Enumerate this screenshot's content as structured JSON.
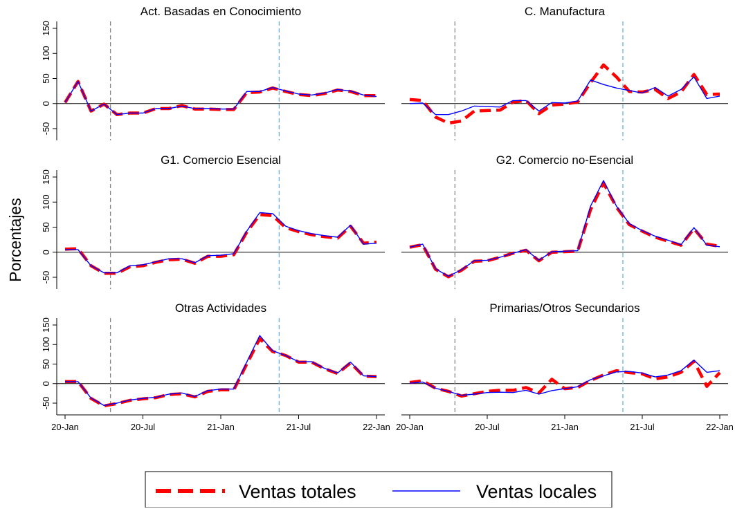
{
  "chart_data": {
    "type": "line",
    "ylabel": "Porcentajes",
    "x_ticks": [
      "20-Jan",
      "20-Jul",
      "21-Jan",
      "21-Jul",
      "22-Jan"
    ],
    "y_ticks": [
      -50,
      0,
      50,
      100,
      150
    ],
    "ylim": [
      -70,
      160
    ],
    "grid": false,
    "legend_position": "bottom",
    "reference_lines": [
      {
        "x": 3.5,
        "color": "#888888",
        "style": "dashed"
      },
      {
        "x": 16.5,
        "color": "#6ab0d8",
        "style": "dashed"
      },
      {
        "y": 0,
        "color": "#000000",
        "style": "solid"
      }
    ],
    "series_styles": [
      {
        "name": "Ventas totales",
        "color": "#ff0000",
        "dash": "dashed"
      },
      {
        "name": "Ventas locales",
        "color": "#0000ff",
        "dash": "solid"
      }
    ],
    "panels": [
      {
        "title": "Act. Basadas en Conocimiento",
        "series": [
          {
            "name": "Ventas totales",
            "values": [
              2,
              44,
              -15,
              -1,
              -22,
              -19,
              -19,
              -10,
              -10,
              -4,
              -11,
              -11,
              -12,
              -12,
              22,
              23,
              31,
              24,
              18,
              16,
              20,
              27,
              24,
              16,
              16
            ]
          },
          {
            "name": "Ventas locales",
            "values": [
              2,
              44,
              -15,
              -1,
              -22,
              -19,
              -19,
              -10,
              -10,
              -5,
              -10,
              -10,
              -11,
              -11,
              24,
              24,
              32,
              25,
              19,
              17,
              21,
              28,
              25,
              17,
              14
            ]
          }
        ]
      },
      {
        "title": "C. Manufactura",
        "series": [
          {
            "name": "Ventas totales",
            "values": [
              8,
              6,
              -27,
              -39,
              -35,
              -15,
              -14,
              -13,
              3,
              6,
              -20,
              -3,
              -1,
              3,
              42,
              77,
              53,
              24,
              23,
              28,
              10,
              23,
              58,
              18,
              19
            ]
          },
          {
            "name": "Ventas locales",
            "values": [
              0,
              1,
              -22,
              -22,
              -15,
              -5,
              -6,
              -7,
              6,
              6,
              -15,
              2,
              1,
              5,
              47,
              38,
              31,
              26,
              21,
              32,
              15,
              28,
              53,
              10,
              15
            ]
          }
        ]
      },
      {
        "title": "G1. Comercio Esencial",
        "series": [
          {
            "name": "Ventas totales",
            "values": [
              6,
              7,
              -27,
              -42,
              -42,
              -29,
              -27,
              -20,
              -15,
              -14,
              -22,
              -8,
              -8,
              -5,
              40,
              75,
              73,
              49,
              41,
              35,
              31,
              28,
              52,
              18,
              20
            ]
          },
          {
            "name": "Ventas locales",
            "values": [
              5,
              5,
              -27,
              -41,
              -41,
              -27,
              -25,
              -19,
              -13,
              -13,
              -21,
              -7,
              -6,
              -3,
              42,
              79,
              77,
              52,
              43,
              37,
              33,
              30,
              54,
              16,
              18
            ]
          }
        ]
      },
      {
        "title": "G2. Comercio no-Esencial",
        "series": [
          {
            "name": "Ventas totales",
            "values": [
              10,
              15,
              -34,
              -49,
              -36,
              -18,
              -17,
              -10,
              -2,
              4,
              -17,
              0,
              1,
              2,
              85,
              138,
              90,
              55,
              42,
              30,
              22,
              14,
              47,
              16,
              12
            ]
          },
          {
            "name": "Ventas locales",
            "values": [
              10,
              16,
              -33,
              -48,
              -35,
              -17,
              -16,
              -10,
              -2,
              5,
              -16,
              1,
              2,
              3,
              92,
              143,
              92,
              57,
              43,
              32,
              24,
              15,
              49,
              14,
              11
            ]
          }
        ]
      },
      {
        "title": "Otras Actividades",
        "series": [
          {
            "name": "Ventas totales",
            "values": [
              5,
              5,
              -38,
              -57,
              -51,
              -43,
              -39,
              -36,
              -28,
              -26,
              -34,
              -20,
              -16,
              -16,
              50,
              115,
              82,
              72,
              55,
              55,
              38,
              26,
              53,
              19,
              18
            ]
          },
          {
            "name": "Ventas locales",
            "values": [
              5,
              5,
              -37,
              -56,
              -50,
              -42,
              -38,
              -35,
              -27,
              -24,
              -33,
              -18,
              -14,
              -14,
              55,
              123,
              84,
              72,
              56,
              56,
              39,
              27,
              55,
              20,
              18
            ]
          }
        ]
      },
      {
        "title": "Primarias/Otros Secundarios",
        "series": [
          {
            "name": "Ventas totales",
            "values": [
              3,
              7,
              -12,
              -20,
              -32,
              -26,
              -20,
              -17,
              -17,
              -10,
              -24,
              11,
              -13,
              -10,
              8,
              22,
              33,
              28,
              25,
              12,
              17,
              29,
              57,
              -7,
              28
            ]
          },
          {
            "name": "Ventas locales",
            "values": [
              1,
              4,
              -12,
              -20,
              -30,
              -27,
              -23,
              -22,
              -23,
              -17,
              -27,
              -18,
              -13,
              -8,
              10,
              20,
              30,
              31,
              27,
              17,
              22,
              33,
              60,
              29,
              33
            ]
          }
        ]
      }
    ]
  }
}
